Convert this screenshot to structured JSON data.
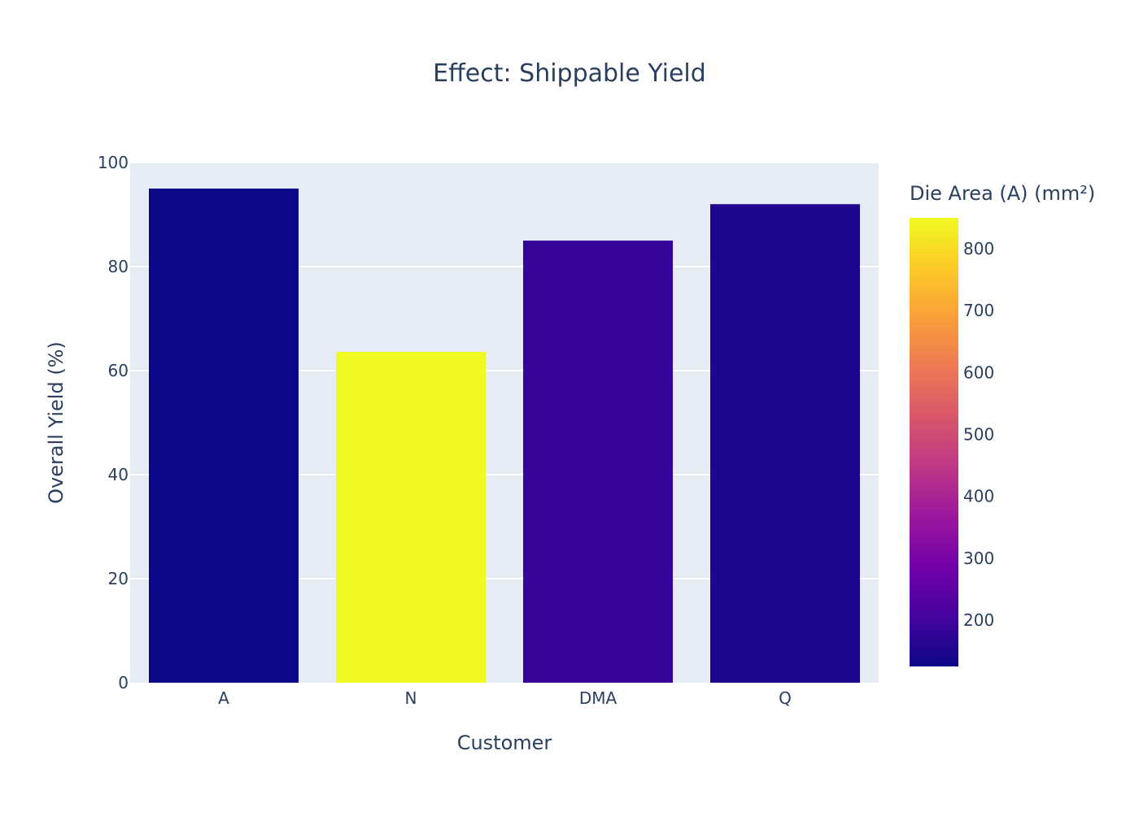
{
  "chart_data": {
    "type": "bar",
    "title": "Effect: Shippable Yield",
    "xlabel": "Customer",
    "ylabel": "Overall Yield (%)",
    "categories": [
      "A",
      "N",
      "DMA",
      "Q"
    ],
    "values": [
      95,
      63.6,
      85,
      92
    ],
    "color_values": [
      125,
      850,
      180,
      150
    ],
    "ylim": [
      0,
      100
    ],
    "yticks": [
      0,
      20,
      40,
      60,
      80,
      100
    ],
    "grid": true,
    "colorbar": {
      "title": "Die Area (A) (mm²)",
      "colorscale": "Plasma",
      "range": [
        125,
        850
      ],
      "ticks": [
        200,
        300,
        400,
        500,
        600,
        700,
        800
      ],
      "placement": "right"
    },
    "plot_bgcolor": "#e5ecf6",
    "text_color": "#2a3f5f"
  }
}
